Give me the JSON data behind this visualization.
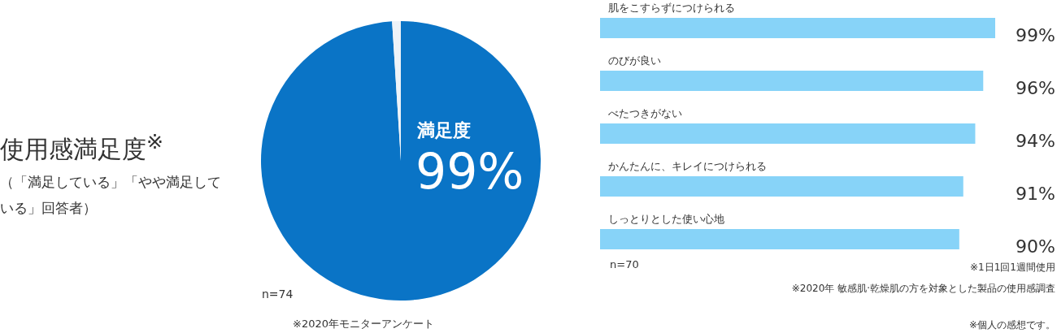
{
  "chart_data": [
    {
      "type": "pie",
      "title": "使用感満足度$^{※}$",
      "subtitle": "（「満足している」「やや満足している」回答者）",
      "categories": [
        "満足度",
        null
      ],
      "values": [
        99,
        1
      ],
      "colors": [
        "#0a74c6",
        "#eef3f8"
      ],
      "value_labels": [
        "99%",
        null
      ],
      "annotations": [
        "n=74",
        "※2020年モニターアンケート"
      ]
    },
    {
      "type": "bar",
      "orientation": "horizontal",
      "categories": [
        "肌をこすらずにつけられる",
        "のびが良い",
        "べたつきがない",
        "かんたんに、キレイにつけられる",
        "しっとりとした使い心地"
      ],
      "values": [
        99,
        96,
        94,
        91,
        90
      ],
      "color": "#87d3f8",
      "value_labels": [
        "99%",
        "96%",
        "94%",
        "91%",
        "90%"
      ],
      "annotations": [
        "n=70",
        "※1日1回1週間使用",
        "※2020年 敏感肌·乾燥肌の方を対象とした製品の使用感調査",
        "※個人の感想です。"
      ]
    }
  ]
}
